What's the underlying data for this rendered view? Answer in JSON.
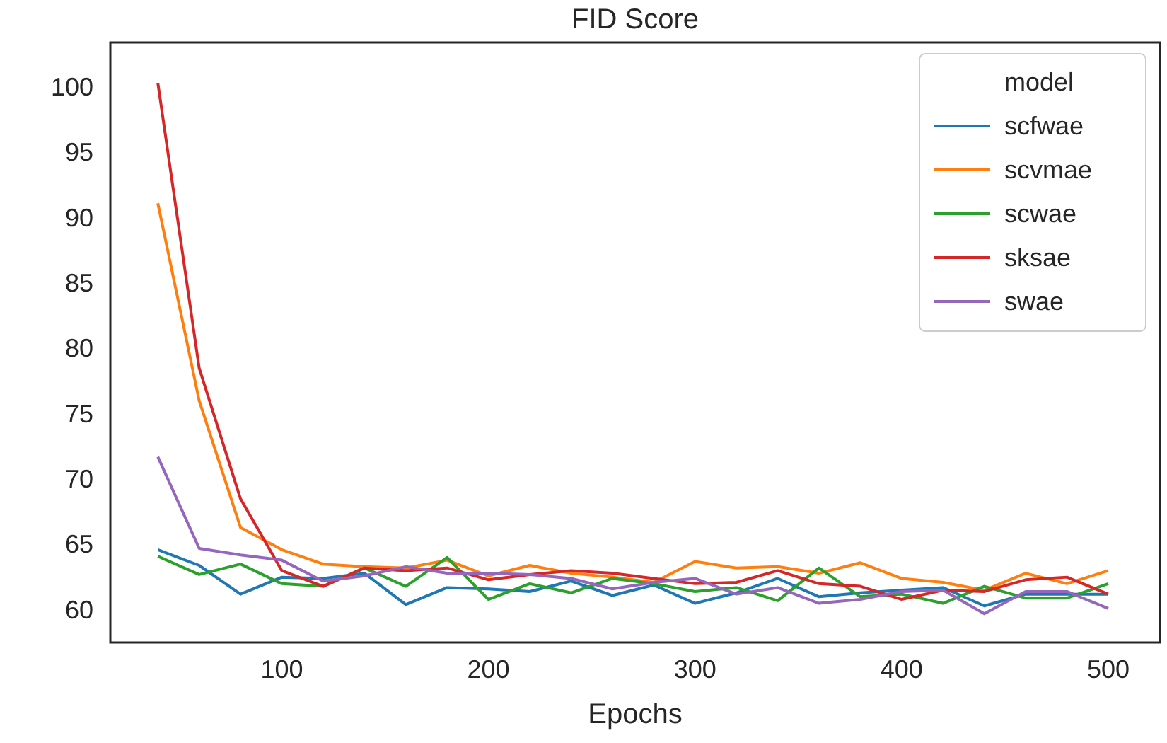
{
  "chart_data": {
    "type": "line",
    "title": "FID Score",
    "xlabel": "Epochs",
    "legend_title": "model",
    "legend": "top right",
    "grid": false,
    "x": [
      40,
      60,
      80,
      100,
      120,
      140,
      160,
      180,
      200,
      220,
      240,
      260,
      280,
      300,
      320,
      340,
      360,
      380,
      400,
      420,
      440,
      460,
      480,
      500
    ],
    "xlim": [
      17,
      525
    ],
    "xticks": [
      100,
      200,
      300,
      400,
      500
    ],
    "ylim": [
      57.5,
      103.4
    ],
    "yticks": [
      60,
      65,
      70,
      75,
      80,
      85,
      90,
      95,
      100
    ],
    "series": [
      {
        "name": "scfwae",
        "color": "#1f77b4",
        "values": [
          64.6,
          63.4,
          61.2,
          62.5,
          62.4,
          62.8,
          60.4,
          61.7,
          61.6,
          61.4,
          62.2,
          61.1,
          61.9,
          60.5,
          61.3,
          62.4,
          61,
          61.3,
          61.5,
          61.7,
          60.3,
          61.2,
          61.2,
          61.2
        ]
      },
      {
        "name": "scvmae",
        "color": "#ff7f0e",
        "values": [
          91.1,
          76,
          66.3,
          64.6,
          63.5,
          63.3,
          63.2,
          63.8,
          62.6,
          63.4,
          62.8,
          62.5,
          62.1,
          63.7,
          63.2,
          63.3,
          62.8,
          63.6,
          62.4,
          62.1,
          61.5,
          62.8,
          62,
          63
        ]
      },
      {
        "name": "scwae",
        "color": "#2ca02c",
        "values": [
          64.1,
          62.7,
          63.5,
          62,
          61.8,
          63.2,
          61.8,
          64,
          60.8,
          62,
          61.3,
          62.4,
          62,
          61.4,
          61.7,
          60.7,
          63.2,
          61,
          61.2,
          60.5,
          61.8,
          60.9,
          60.9,
          62
        ]
      },
      {
        "name": "sksae",
        "color": "#d62728",
        "values": [
          100.3,
          78.5,
          68.5,
          63,
          61.8,
          63.2,
          63,
          63.2,
          62.3,
          62.7,
          63,
          62.8,
          62.4,
          62,
          62.1,
          63,
          62,
          61.8,
          60.8,
          61.5,
          61.4,
          62.3,
          62.5,
          61.2
        ]
      },
      {
        "name": "swae",
        "color": "#9467bd",
        "values": [
          71.7,
          64.7,
          64.2,
          63.8,
          62.2,
          62.6,
          63.3,
          62.8,
          62.8,
          62.7,
          62.4,
          61.6,
          62.1,
          62.4,
          61.2,
          61.7,
          60.5,
          60.8,
          61.4,
          61.5,
          59.7,
          61.4,
          61.4,
          60.1
        ]
      }
    ]
  }
}
